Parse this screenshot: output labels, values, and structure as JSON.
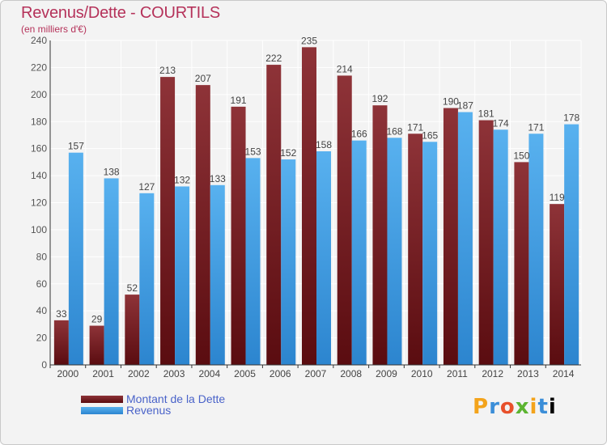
{
  "chart_data": {
    "type": "bar",
    "title": "Revenus/Dette - COURTILS",
    "subtitle": "(en milliers d'€)",
    "categories": [
      "2000",
      "2001",
      "2002",
      "2003",
      "2004",
      "2005",
      "2006",
      "2007",
      "2008",
      "2009",
      "2010",
      "2011",
      "2012",
      "2013",
      "2014"
    ],
    "series": [
      {
        "name": "Montant de la Dette",
        "color": "#7a1f24",
        "values": [
          33,
          29,
          52,
          213,
          207,
          191,
          222,
          235,
          214,
          192,
          171,
          190,
          181,
          150,
          119
        ]
      },
      {
        "name": "Revenus",
        "color": "#4aa3e8",
        "values": [
          157,
          138,
          127,
          132,
          133,
          153,
          152,
          158,
          166,
          168,
          165,
          187,
          174,
          171,
          178
        ]
      }
    ],
    "ylim": [
      0,
      240
    ],
    "yticks": [
      0,
      20,
      40,
      60,
      80,
      100,
      120,
      140,
      160,
      180,
      200,
      220,
      240
    ],
    "grid": true,
    "legend": "bottom-left"
  },
  "logo": {
    "letters": [
      "P",
      "r",
      "o",
      "x",
      "i",
      "t",
      "i"
    ]
  }
}
